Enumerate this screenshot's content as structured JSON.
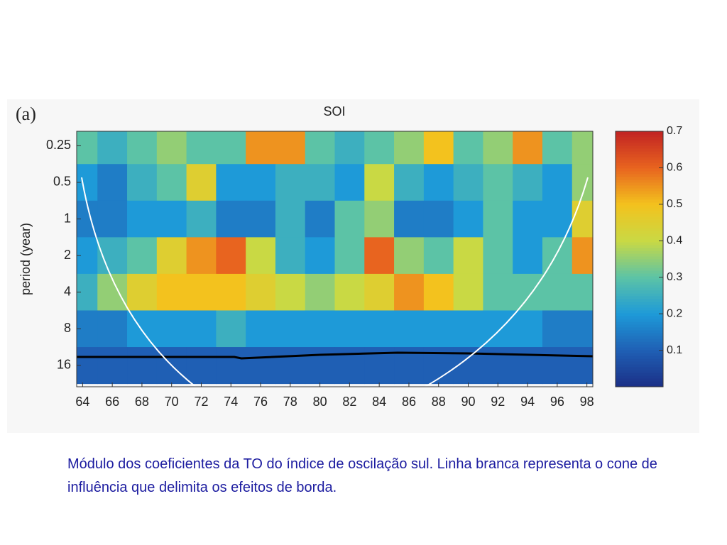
{
  "chart_data": {
    "type": "heatmap",
    "panel_label": "(a)",
    "title": "SOI",
    "y_label": "period (year)",
    "x": [
      64,
      66,
      68,
      70,
      72,
      74,
      76,
      78,
      80,
      82,
      84,
      86,
      88,
      90,
      92,
      94,
      96,
      98
    ],
    "y": [
      0.25,
      0.5,
      1,
      2,
      4,
      8,
      16
    ],
    "z": [
      [
        0.3,
        0.25,
        0.3,
        0.35,
        0.3,
        0.3,
        0.55,
        0.55,
        0.3,
        0.25,
        0.3,
        0.35,
        0.5,
        0.3,
        0.35,
        0.55,
        0.3,
        0.35
      ],
      [
        0.2,
        0.15,
        0.25,
        0.3,
        0.45,
        0.2,
        0.2,
        0.25,
        0.25,
        0.2,
        0.4,
        0.25,
        0.2,
        0.25,
        0.3,
        0.25,
        0.2,
        0.35
      ],
      [
        0.15,
        0.15,
        0.2,
        0.2,
        0.25,
        0.15,
        0.15,
        0.25,
        0.15,
        0.3,
        0.35,
        0.15,
        0.15,
        0.2,
        0.3,
        0.2,
        0.2,
        0.45
      ],
      [
        0.2,
        0.25,
        0.3,
        0.45,
        0.55,
        0.6,
        0.4,
        0.25,
        0.2,
        0.3,
        0.6,
        0.35,
        0.3,
        0.4,
        0.3,
        0.2,
        0.3,
        0.55
      ],
      [
        0.25,
        0.35,
        0.45,
        0.5,
        0.5,
        0.5,
        0.45,
        0.4,
        0.35,
        0.4,
        0.45,
        0.55,
        0.5,
        0.4,
        0.3,
        0.3,
        0.3,
        0.3
      ],
      [
        0.15,
        0.15,
        0.2,
        0.2,
        0.2,
        0.25,
        0.2,
        0.2,
        0.2,
        0.2,
        0.2,
        0.2,
        0.2,
        0.2,
        0.2,
        0.2,
        0.15,
        0.15
      ],
      [
        0.1,
        0.1,
        0.1,
        0.1,
        0.1,
        0.1,
        0.1,
        0.1,
        0.1,
        0.1,
        0.1,
        0.1,
        0.1,
        0.1,
        0.1,
        0.1,
        0.1,
        0.1
      ]
    ],
    "xlim": [
      63.6,
      98.4
    ],
    "xticks": [
      64,
      66,
      68,
      70,
      72,
      74,
      76,
      78,
      80,
      82,
      84,
      86,
      88,
      90,
      92,
      94,
      96,
      98
    ],
    "ylim": [
      0.19,
      24
    ],
    "yticks": [
      0.25,
      0.5,
      1,
      2,
      4,
      8,
      16
    ],
    "y_scale": "log2",
    "y_inverted": true,
    "clim": [
      0,
      0.7
    ],
    "cticks": [
      0.1,
      0.2,
      0.3,
      0.4,
      0.5,
      0.6,
      0.7
    ],
    "colormap": [
      "#1b2f86",
      "#1f5fb4",
      "#1e9ad8",
      "#5cc3a6",
      "#c9d944",
      "#f3c21e",
      "#e8641f",
      "#c22323"
    ]
  },
  "caption": "Módulo dos coeficientes da TO do índice de oscilação sul. Linha branca representa o cone de influência que delimita os efeitos de borda."
}
